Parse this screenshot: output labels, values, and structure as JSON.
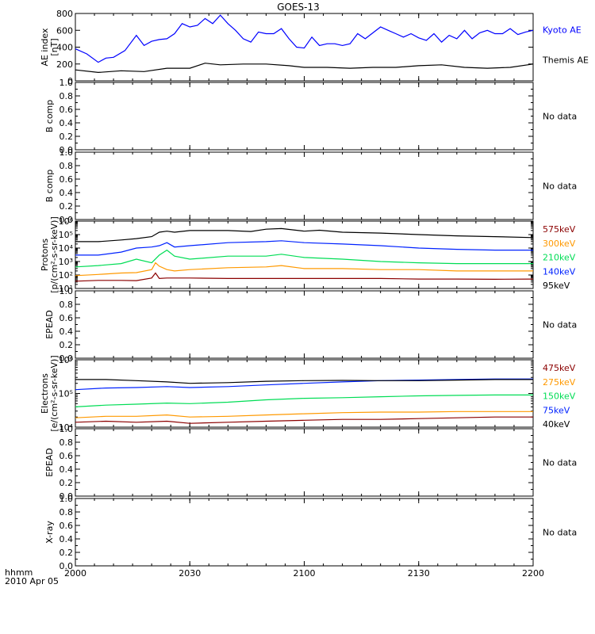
{
  "title": "GOES-13",
  "xaxis": {
    "range": [
      0,
      120
    ],
    "ticks": [
      {
        "v": 0,
        "label": "2000"
      },
      {
        "v": 30,
        "label": "2030"
      },
      {
        "v": 60,
        "label": "2100"
      },
      {
        "v": 90,
        "label": "2130"
      },
      {
        "v": 120,
        "label": "2200"
      }
    ],
    "corner_label": "hhmm",
    "date_label": "2010 Apr 05"
  },
  "chart_data": [
    {
      "type": "line",
      "id": "ae",
      "ylabel": [
        "AE index",
        "[nT]"
      ],
      "ylim": [
        0,
        800
      ],
      "scale": "linear",
      "yticks": [
        {
          "v": 0,
          "label": "0"
        },
        {
          "v": 200,
          "label": "200"
        },
        {
          "v": 400,
          "label": "400"
        },
        {
          "v": 600,
          "label": "600"
        },
        {
          "v": 800,
          "label": "800"
        }
      ],
      "series": [
        {
          "name": "Kyoto AE",
          "color": "#0000ff",
          "x": [
            0,
            3,
            6,
            8,
            10,
            13,
            16,
            18,
            20,
            22,
            24,
            26,
            28,
            30,
            32,
            34,
            36,
            38,
            40,
            42,
            44,
            46,
            48,
            50,
            52,
            54,
            56,
            58,
            60,
            62,
            64,
            66,
            68,
            70,
            72,
            74,
            76,
            78,
            80,
            82,
            84,
            86,
            88,
            90,
            92,
            94,
            96,
            98,
            100,
            102,
            104,
            106,
            108,
            110,
            112,
            114,
            116,
            118,
            120
          ],
          "y": [
            380,
            320,
            220,
            270,
            280,
            360,
            540,
            420,
            470,
            490,
            500,
            560,
            680,
            640,
            660,
            740,
            680,
            780,
            680,
            600,
            500,
            460,
            580,
            560,
            560,
            620,
            500,
            400,
            390,
            520,
            420,
            440,
            440,
            420,
            440,
            560,
            500,
            570,
            640,
            600,
            560,
            520,
            560,
            510,
            480,
            560,
            460,
            540,
            500,
            600,
            500,
            570,
            600,
            560,
            560,
            620,
            550,
            580,
            600
          ]
        },
        {
          "name": "Themis AE",
          "color": "#000000",
          "x": [
            0,
            6,
            12,
            18,
            24,
            28,
            30,
            34,
            38,
            44,
            50,
            56,
            60,
            66,
            72,
            78,
            84,
            90,
            96,
            102,
            108,
            114,
            120
          ],
          "y": [
            130,
            100,
            120,
            110,
            150,
            150,
            150,
            210,
            190,
            200,
            200,
            180,
            160,
            160,
            150,
            160,
            160,
            180,
            190,
            160,
            150,
            160,
            200
          ]
        }
      ]
    },
    {
      "type": "line",
      "id": "bcomp1",
      "ylabel": [
        "B comp"
      ],
      "ylim": [
        0,
        1
      ],
      "scale": "linear",
      "yticks": [
        {
          "v": 0,
          "label": "0.0"
        },
        {
          "v": 0.2,
          "label": "0.2"
        },
        {
          "v": 0.4,
          "label": "0.4"
        },
        {
          "v": 0.6,
          "label": "0.6"
        },
        {
          "v": 0.8,
          "label": "0.8"
        },
        {
          "v": 1,
          "label": "1.0"
        }
      ],
      "minor_step": 0.1,
      "series": [],
      "nodata": "No data"
    },
    {
      "type": "line",
      "id": "bcomp2",
      "ylabel": [
        "B comp"
      ],
      "ylim": [
        0,
        1
      ],
      "scale": "linear",
      "yticks": [
        {
          "v": 0,
          "label": "0.0"
        },
        {
          "v": 0.2,
          "label": "0.2"
        },
        {
          "v": 0.4,
          "label": "0.4"
        },
        {
          "v": 0.6,
          "label": "0.6"
        },
        {
          "v": 0.8,
          "label": "0.8"
        },
        {
          "v": 1,
          "label": "1.0"
        }
      ],
      "minor_step": 0.1,
      "series": [],
      "nodata": "No data"
    },
    {
      "type": "line",
      "id": "protons",
      "ylabel": [
        "Protons",
        "[p/(cm²-s-sr-keV)]"
      ],
      "ylim": [
        10,
        1000000
      ],
      "scale": "log",
      "yticks": [
        {
          "v": 10,
          "label": "10¹"
        },
        {
          "v": 100,
          "label": "10²"
        },
        {
          "v": 1000,
          "label": "10³"
        },
        {
          "v": 10000,
          "label": "10⁴"
        },
        {
          "v": 100000,
          "label": "10⁵"
        },
        {
          "v": 1000000,
          "label": "10⁶"
        }
      ],
      "series": [
        {
          "name": "575keV",
          "color": "#8b0000",
          "x": [
            0,
            6,
            12,
            16,
            20,
            21,
            22,
            24,
            30,
            40,
            50,
            60,
            70,
            80,
            90,
            100,
            110,
            120
          ],
          "y": [
            35,
            40,
            40,
            38,
            60,
            140,
            55,
            60,
            60,
            55,
            55,
            55,
            55,
            55,
            50,
            50,
            48,
            50
          ]
        },
        {
          "name": "300keV",
          "color": "#ff9900",
          "x": [
            0,
            6,
            12,
            16,
            20,
            21,
            22,
            24,
            26,
            30,
            40,
            50,
            54,
            60,
            70,
            80,
            90,
            100,
            110,
            120
          ],
          "y": [
            90,
            110,
            140,
            150,
            250,
            800,
            450,
            250,
            200,
            250,
            350,
            400,
            500,
            300,
            300,
            250,
            250,
            200,
            200,
            200
          ]
        },
        {
          "name": "210keV",
          "color": "#00dd55",
          "x": [
            0,
            6,
            12,
            16,
            20,
            22,
            24,
            26,
            30,
            40,
            50,
            54,
            60,
            70,
            80,
            90,
            100,
            110,
            120
          ],
          "y": [
            400,
            500,
            700,
            1500,
            800,
            3000,
            7000,
            2500,
            1500,
            2500,
            2500,
            3500,
            2000,
            1500,
            1000,
            800,
            700,
            700,
            700
          ]
        },
        {
          "name": "140keV",
          "color": "#0022ff",
          "x": [
            0,
            6,
            12,
            16,
            20,
            22,
            24,
            26,
            30,
            40,
            50,
            54,
            60,
            70,
            80,
            90,
            100,
            110,
            120
          ],
          "y": [
            3000,
            3000,
            5000,
            10000,
            12000,
            15000,
            25000,
            12000,
            15000,
            25000,
            30000,
            35000,
            25000,
            20000,
            15000,
            10000,
            8000,
            7000,
            7000
          ]
        },
        {
          "name": "95keV",
          "color": "#000000",
          "x": [
            0,
            6,
            12,
            16,
            20,
            22,
            24,
            26,
            30,
            40,
            46,
            50,
            54,
            60,
            64,
            70,
            80,
            90,
            100,
            110,
            120
          ],
          "y": [
            30000,
            30000,
            40000,
            50000,
            70000,
            150000,
            180000,
            150000,
            200000,
            200000,
            170000,
            250000,
            280000,
            180000,
            210000,
            150000,
            130000,
            100000,
            80000,
            70000,
            60000
          ]
        }
      ]
    },
    {
      "type": "line",
      "id": "epead1",
      "ylabel": [
        "EPEAD"
      ],
      "ylim": [
        0,
        1
      ],
      "scale": "linear",
      "yticks": [
        {
          "v": 0,
          "label": "0.0"
        },
        {
          "v": 0.2,
          "label": "0.2"
        },
        {
          "v": 0.4,
          "label": "0.4"
        },
        {
          "v": 0.6,
          "label": "0.6"
        },
        {
          "v": 0.8,
          "label": "0.8"
        },
        {
          "v": 1,
          "label": "1.0"
        }
      ],
      "minor_step": 0.1,
      "series": [],
      "nodata": "No data"
    },
    {
      "type": "line",
      "id": "electrons",
      "ylabel": [
        "Electrons",
        "[e/(cm²-s-sr-keV)]"
      ],
      "ylim": [
        10000,
        1000000
      ],
      "scale": "log",
      "yticks": [
        {
          "v": 10000,
          "label": "10⁴"
        },
        {
          "v": 100000,
          "label": "10⁵"
        },
        {
          "v": 1000000,
          "label": "10⁶"
        }
      ],
      "series": [
        {
          "name": "475keV",
          "color": "#8b0000",
          "x": [
            0,
            8,
            16,
            24,
            30,
            40,
            50,
            60,
            70,
            80,
            90,
            100,
            110,
            120
          ],
          "y": [
            14000,
            15000,
            14000,
            15000,
            13000,
            14000,
            15000,
            16000,
            17000,
            17000,
            18000,
            19000,
            20000,
            20000
          ]
        },
        {
          "name": "275keV",
          "color": "#ff9900",
          "x": [
            0,
            8,
            16,
            24,
            30,
            40,
            50,
            60,
            70,
            80,
            90,
            100,
            110,
            120
          ],
          "y": [
            19000,
            21000,
            21000,
            23000,
            20000,
            21000,
            23000,
            25000,
            27000,
            28000,
            28000,
            29000,
            29000,
            29000
          ]
        },
        {
          "name": "150keV",
          "color": "#00dd55",
          "x": [
            0,
            8,
            16,
            24,
            30,
            40,
            50,
            60,
            70,
            80,
            90,
            100,
            110,
            120
          ],
          "y": [
            40000,
            45000,
            48000,
            52000,
            50000,
            55000,
            65000,
            72000,
            75000,
            80000,
            85000,
            88000,
            90000,
            90000
          ]
        },
        {
          "name": "75keV",
          "color": "#0022ff",
          "x": [
            0,
            8,
            16,
            24,
            30,
            40,
            50,
            60,
            70,
            80,
            90,
            100,
            110,
            120
          ],
          "y": [
            130000,
            145000,
            150000,
            160000,
            150000,
            160000,
            180000,
            200000,
            220000,
            240000,
            250000,
            260000,
            270000,
            270000
          ]
        },
        {
          "name": "40keV",
          "color": "#000000",
          "x": [
            0,
            8,
            16,
            24,
            30,
            40,
            50,
            60,
            70,
            80,
            90,
            100,
            110,
            120
          ],
          "y": [
            260000,
            260000,
            240000,
            220000,
            200000,
            210000,
            230000,
            240000,
            245000,
            240000,
            240000,
            250000,
            260000,
            260000
          ]
        }
      ]
    },
    {
      "type": "line",
      "id": "epead2",
      "ylabel": [
        "EPEAD"
      ],
      "ylim": [
        0,
        1
      ],
      "scale": "linear",
      "yticks": [
        {
          "v": 0,
          "label": "0.0"
        },
        {
          "v": 0.2,
          "label": "0.2"
        },
        {
          "v": 0.4,
          "label": "0.4"
        },
        {
          "v": 0.6,
          "label": "0.6"
        },
        {
          "v": 0.8,
          "label": "0.8"
        },
        {
          "v": 1,
          "label": "1.0"
        }
      ],
      "minor_step": 0.1,
      "series": [],
      "nodata": "No data"
    },
    {
      "type": "line",
      "id": "xray",
      "ylabel": [
        "X-ray"
      ],
      "ylim": [
        0,
        1
      ],
      "scale": "linear",
      "yticks": [
        {
          "v": 0,
          "label": "0.0"
        },
        {
          "v": 0.2,
          "label": "0.2"
        },
        {
          "v": 0.4,
          "label": "0.4"
        },
        {
          "v": 0.6,
          "label": "0.6"
        },
        {
          "v": 0.8,
          "label": "0.8"
        },
        {
          "v": 1,
          "label": "1.0"
        }
      ],
      "minor_step": 0.1,
      "series": [],
      "nodata": "No data"
    }
  ]
}
